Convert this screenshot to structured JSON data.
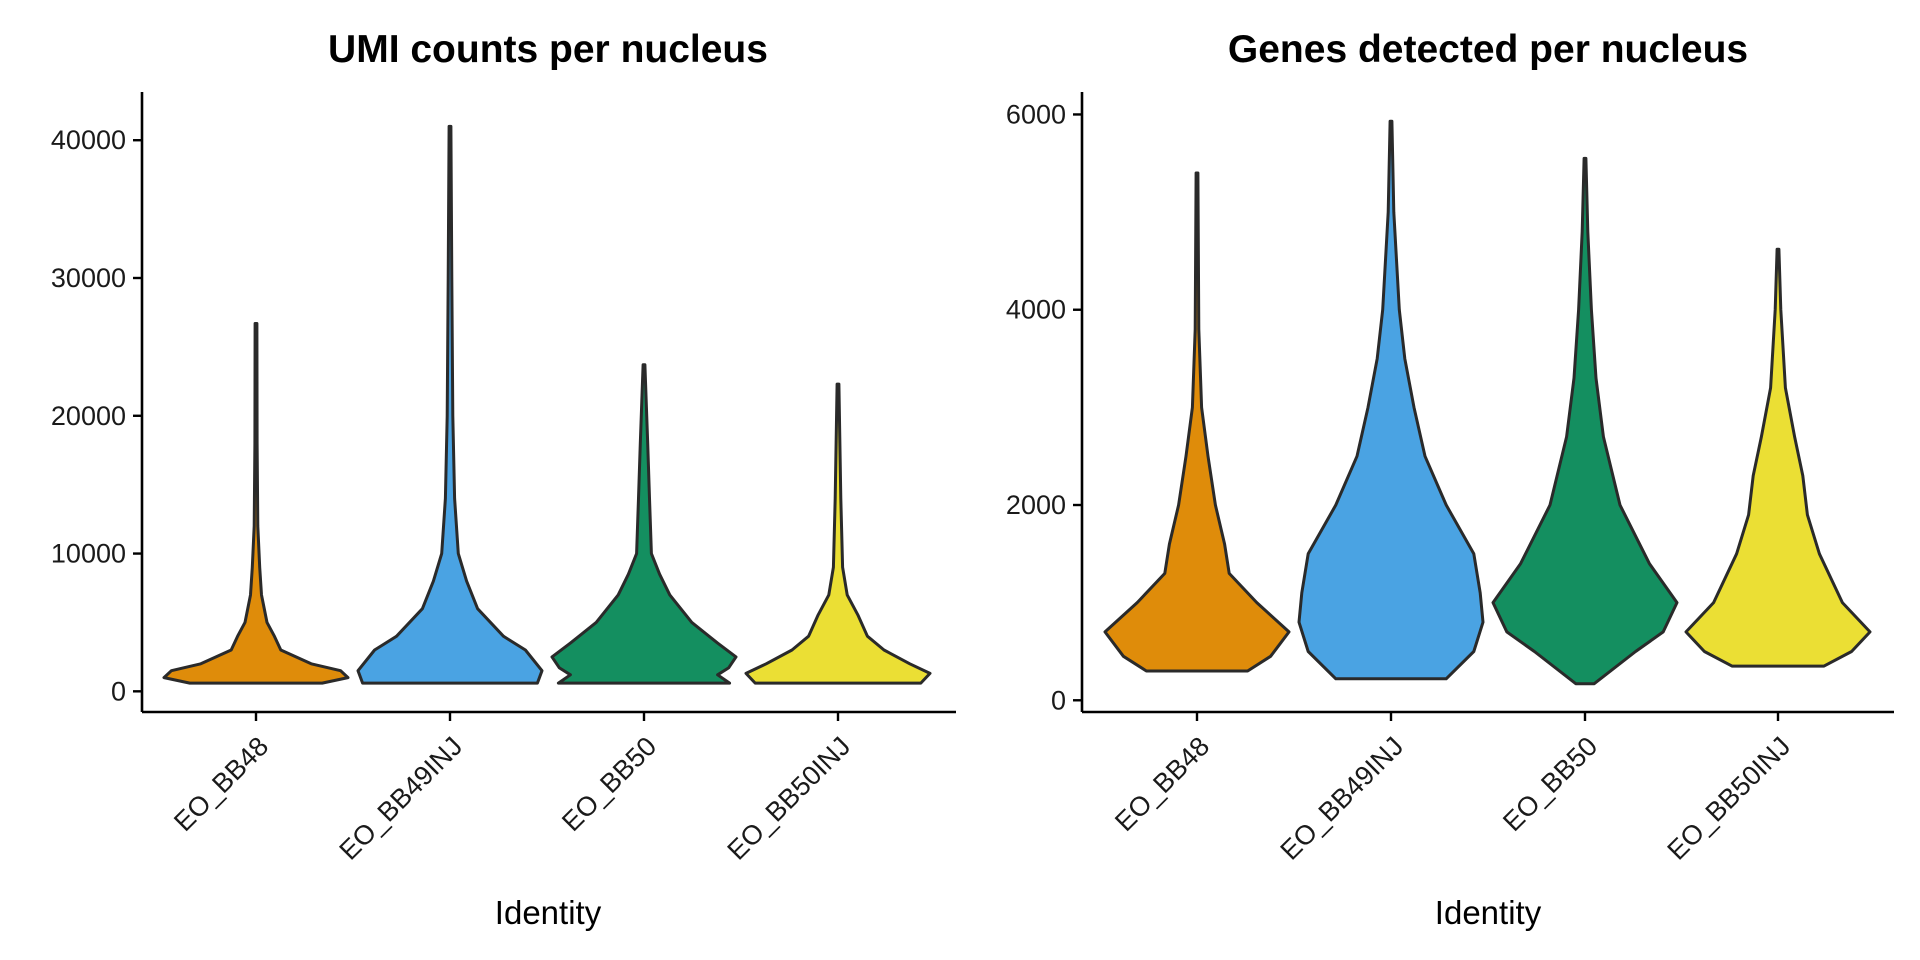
{
  "chart_data": [
    {
      "type": "violin",
      "title": "UMI counts per nucleus",
      "xlabel": "Identity",
      "ylabel": "",
      "categories": [
        "EO_BB48",
        "EO_BB49INJ",
        "EO_BB50",
        "EO_BB50INJ"
      ],
      "ylim": [
        -1500,
        43500
      ],
      "yticks": [
        0,
        10000,
        20000,
        30000,
        40000
      ],
      "ytick_labels": [
        "0",
        "10000",
        "20000",
        "30000",
        "40000"
      ],
      "colors": [
        "#DF8C0A",
        "#4AA3E3",
        "#148F60",
        "#EBDF34"
      ],
      "violins": [
        {
          "category": "EO_BB48",
          "color": "#DF8C0A",
          "profile": [
            [
              600,
              0.72
            ],
            [
              1000,
              1.0
            ],
            [
              1500,
              0.92
            ],
            [
              2000,
              0.6
            ],
            [
              3000,
              0.27
            ],
            [
              4000,
              0.2
            ],
            [
              5000,
              0.12
            ],
            [
              7000,
              0.06
            ],
            [
              9000,
              0.04
            ],
            [
              12000,
              0.02
            ],
            [
              18000,
              0.012
            ],
            [
              26700,
              0.01
            ]
          ]
        },
        {
          "category": "EO_BB49INJ",
          "color": "#4AA3E3",
          "profile": [
            [
              600,
              0.95
            ],
            [
              1500,
              1.0
            ],
            [
              3000,
              0.82
            ],
            [
              4000,
              0.58
            ],
            [
              6000,
              0.3
            ],
            [
              8000,
              0.18
            ],
            [
              10000,
              0.09
            ],
            [
              14000,
              0.05
            ],
            [
              20000,
              0.03
            ],
            [
              30000,
              0.02
            ],
            [
              41000,
              0.01
            ]
          ]
        },
        {
          "category": "EO_BB50",
          "color": "#148F60",
          "profile": [
            [
              600,
              0.93
            ],
            [
              1200,
              0.8
            ],
            [
              1700,
              0.92
            ],
            [
              2500,
              1.0
            ],
            [
              3500,
              0.8
            ],
            [
              5000,
              0.52
            ],
            [
              7000,
              0.28
            ],
            [
              8500,
              0.17
            ],
            [
              10000,
              0.08
            ],
            [
              14000,
              0.06
            ],
            [
              18000,
              0.04
            ],
            [
              23700,
              0.01
            ]
          ]
        },
        {
          "category": "EO_BB50INJ",
          "color": "#EBDF34",
          "profile": [
            [
              600,
              0.9
            ],
            [
              1300,
              1.0
            ],
            [
              2000,
              0.78
            ],
            [
              3000,
              0.5
            ],
            [
              4000,
              0.32
            ],
            [
              5500,
              0.22
            ],
            [
              7000,
              0.1
            ],
            [
              9000,
              0.05
            ],
            [
              14000,
              0.03
            ],
            [
              22300,
              0.01
            ]
          ]
        }
      ]
    },
    {
      "type": "violin",
      "title": "Genes detected per nucleus",
      "xlabel": "Identity",
      "ylabel": "",
      "categories": [
        "EO_BB48",
        "EO_BB49INJ",
        "EO_BB50",
        "EO_BB50INJ"
      ],
      "ylim": [
        -120,
        6230
      ],
      "yticks": [
        0,
        2000,
        4000,
        6000
      ],
      "ytick_labels": [
        "0",
        "2000",
        "4000",
        "6000"
      ],
      "colors": [
        "#DF8C0A",
        "#4AA3E3",
        "#148F60",
        "#EBDF34"
      ],
      "violins": [
        {
          "category": "EO_BB48",
          "color": "#DF8C0A",
          "profile": [
            [
              300,
              0.55
            ],
            [
              450,
              0.8
            ],
            [
              700,
              1.0
            ],
            [
              1000,
              0.65
            ],
            [
              1300,
              0.35
            ],
            [
              1600,
              0.3
            ],
            [
              2000,
              0.2
            ],
            [
              2500,
              0.12
            ],
            [
              3000,
              0.05
            ],
            [
              3800,
              0.02
            ],
            [
              5400,
              0.01
            ]
          ]
        },
        {
          "category": "EO_BB49INJ",
          "color": "#4AA3E3",
          "profile": [
            [
              220,
              0.6
            ],
            [
              500,
              0.9
            ],
            [
              800,
              1.0
            ],
            [
              1100,
              0.97
            ],
            [
              1500,
              0.9
            ],
            [
              2000,
              0.6
            ],
            [
              2500,
              0.37
            ],
            [
              3000,
              0.25
            ],
            [
              3500,
              0.15
            ],
            [
              4000,
              0.09
            ],
            [
              5000,
              0.03
            ],
            [
              5930,
              0.01
            ]
          ]
        },
        {
          "category": "EO_BB50",
          "color": "#148F60",
          "profile": [
            [
              170,
              0.1
            ],
            [
              500,
              0.55
            ],
            [
              700,
              0.85
            ],
            [
              1000,
              1.0
            ],
            [
              1400,
              0.7
            ],
            [
              2000,
              0.38
            ],
            [
              2700,
              0.2
            ],
            [
              3300,
              0.12
            ],
            [
              4000,
              0.07
            ],
            [
              4800,
              0.03
            ],
            [
              5550,
              0.01
            ]
          ]
        },
        {
          "category": "EO_BB50INJ",
          "color": "#EBDF34",
          "profile": [
            [
              350,
              0.5
            ],
            [
              500,
              0.8
            ],
            [
              700,
              1.0
            ],
            [
              1000,
              0.7
            ],
            [
              1500,
              0.45
            ],
            [
              1900,
              0.32
            ],
            [
              2300,
              0.27
            ],
            [
              2700,
              0.18
            ],
            [
              3200,
              0.08
            ],
            [
              4000,
              0.03
            ],
            [
              4620,
              0.01
            ]
          ]
        }
      ]
    }
  ]
}
